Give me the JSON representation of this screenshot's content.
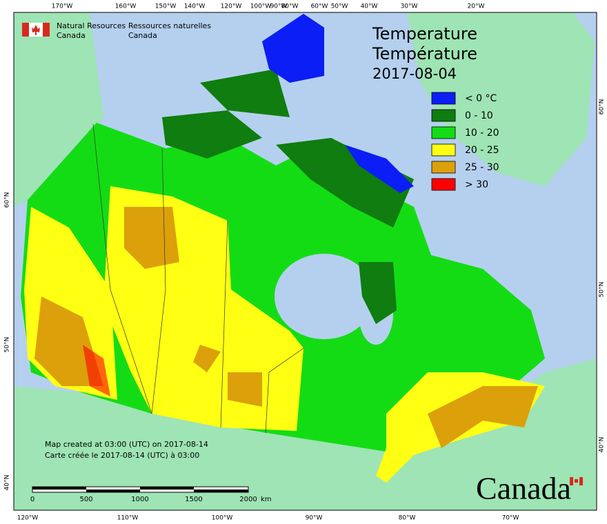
{
  "header": {
    "org_en": "Natural Resources",
    "org_en_2": "Canada",
    "org_fr": "Ressources naturelles",
    "org_fr_2": "Canada"
  },
  "title": {
    "line1": "Temperature",
    "line2": "Température",
    "date": "2017-08-04"
  },
  "legend": [
    {
      "label": "< 0 °C",
      "color": "#0a1ef5"
    },
    {
      "label": "0 - 10",
      "color": "#0f7d0f"
    },
    {
      "label": "10 - 20",
      "color": "#14dc14"
    },
    {
      "label": "20 - 25",
      "color": "#ffff14"
    },
    {
      "label": "25 - 30",
      "color": "#dca00a"
    },
    {
      "label": "> 30",
      "color": "#ff0000"
    }
  ],
  "axes": {
    "top": [
      "170°W",
      "160°W",
      "150°W",
      "140°W",
      "120°W",
      "100°W",
      "90°W",
      "80°W",
      "60°W",
      "50°W",
      "40°W",
      "30°W",
      "20°W"
    ],
    "bottom": [
      "120°W",
      "110°W",
      "100°W",
      "90°W",
      "80°W",
      "70°W"
    ],
    "left": [
      "60°N",
      "50°N",
      "40°N"
    ],
    "right": [
      "60°N",
      "50°N",
      "40°N"
    ]
  },
  "notes": {
    "line1": "Map created at 03:00 (UTC) on 2017-08-14",
    "line2": "Carte créée le 2017-08-14 (UTC) à 03:00"
  },
  "scale": {
    "ticks": [
      "0",
      "500",
      "1000",
      "1500",
      "2000"
    ],
    "unit": "km"
  },
  "wordmark": "Canada"
}
